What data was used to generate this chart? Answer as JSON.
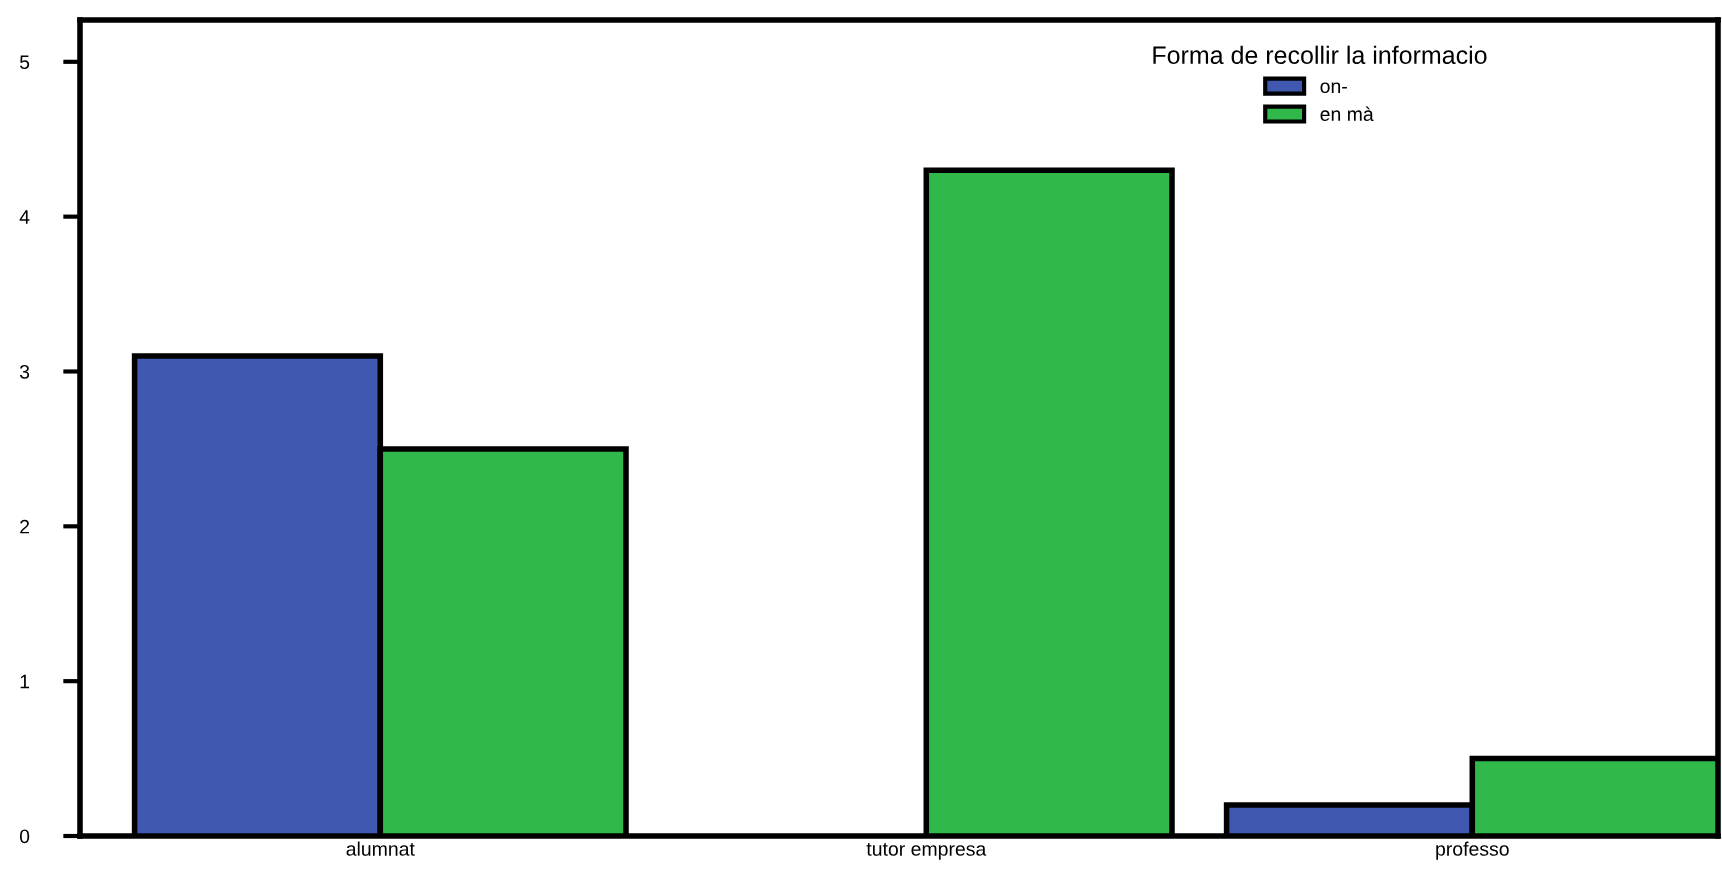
{
  "chart_data": {
    "type": "bar",
    "categories": [
      "alumnat",
      "tutor empresa",
      "professo"
    ],
    "series": [
      {
        "name": "on-",
        "color": "#4058b0",
        "values": [
          3.1,
          null,
          0.2
        ]
      },
      {
        "name": "en mà",
        "color": "#30b84a",
        "values": [
          2.5,
          4.3,
          0.5
        ]
      }
    ],
    "legend_title": "Forma de recollir la informacio",
    "legend": "top right",
    "ylim": [
      0,
      5.27
    ],
    "yticks": [
      0,
      1,
      2,
      3,
      4,
      5
    ],
    "grid": false
  }
}
